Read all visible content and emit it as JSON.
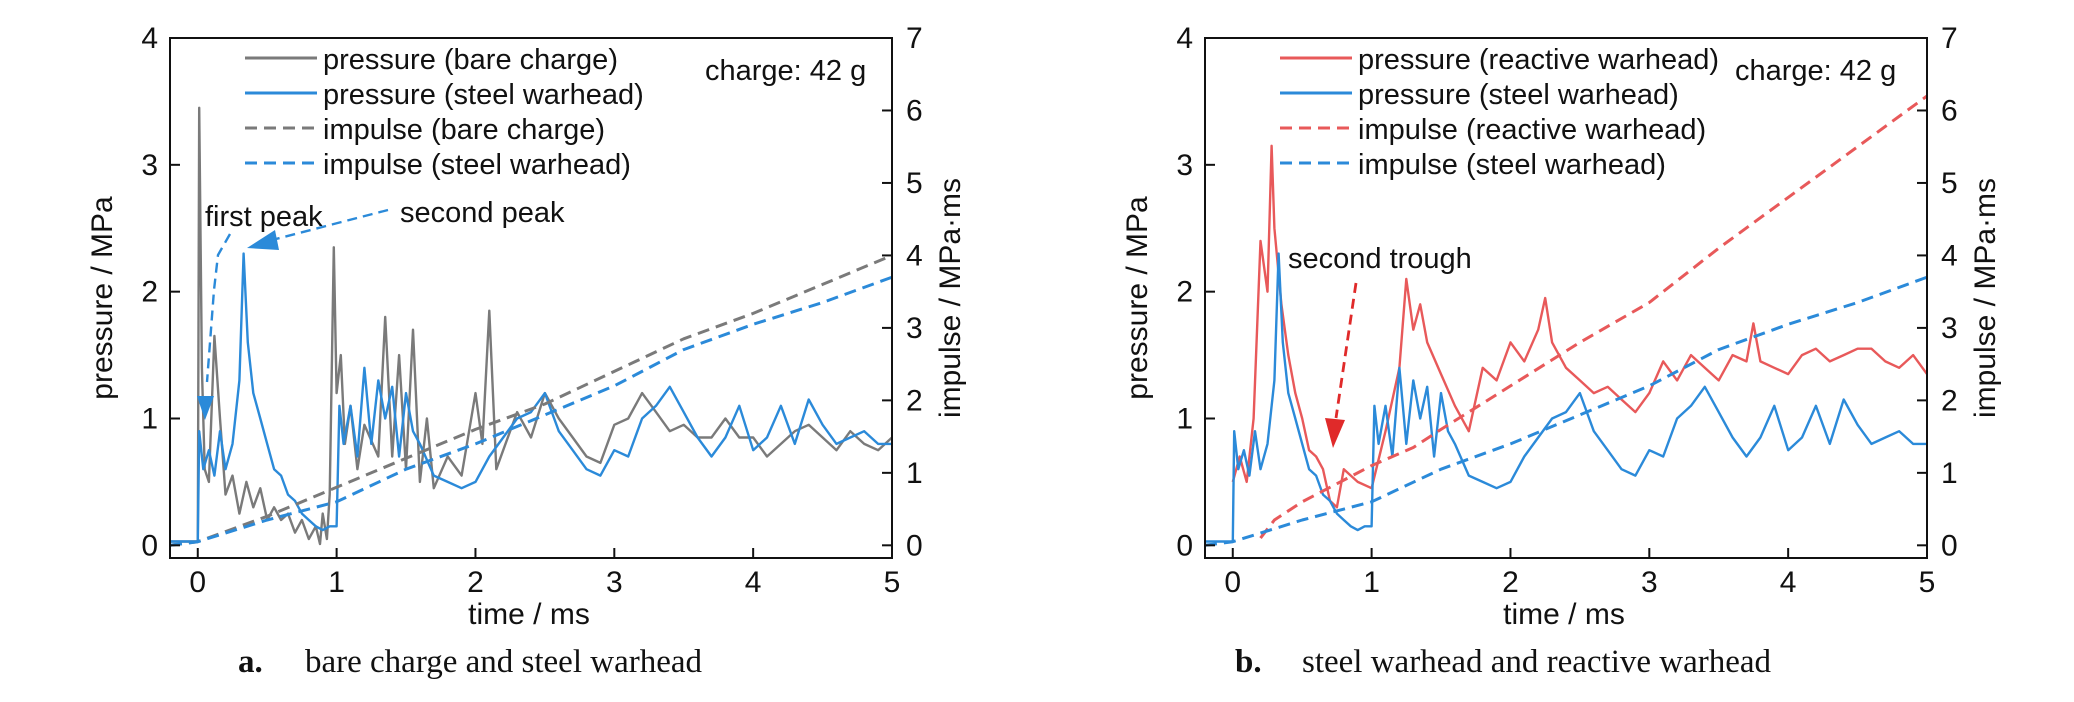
{
  "chart_data": [
    {
      "type": "line",
      "panel_label": "a.",
      "caption": "bare charge and steel warhead",
      "xlabel": "time / ms",
      "ylabel": "pressure / MPa",
      "y2label": "impulse / MPa·ms",
      "xlim": [
        -0.2,
        5
      ],
      "ylim": [
        -0.1,
        4
      ],
      "y2lim": [
        -0.175,
        7
      ],
      "xticks": [
        "0",
        "1",
        "2",
        "3",
        "4",
        "5"
      ],
      "yticks": [
        "0",
        "1",
        "2",
        "3",
        "4"
      ],
      "y2ticks": [
        "0",
        "1",
        "2",
        "3",
        "4",
        "5",
        "6",
        "7"
      ],
      "annotation_charge": "charge: 42 g",
      "annotations": [
        "first peak",
        "second peak"
      ],
      "series": [
        {
          "name": "pressure (bare charge)",
          "axis": "left",
          "style": "solid",
          "color": "#7a7a7a",
          "x": [
            -0.2,
            0,
            0.01,
            0.03,
            0.05,
            0.08,
            0.12,
            0.16,
            0.2,
            0.25,
            0.3,
            0.35,
            0.4,
            0.45,
            0.5,
            0.55,
            0.6,
            0.65,
            0.7,
            0.75,
            0.8,
            0.85,
            0.88,
            0.9,
            0.93,
            0.95,
            0.98,
            1.0,
            1.03,
            1.06,
            1.1,
            1.15,
            1.2,
            1.3,
            1.35,
            1.4,
            1.45,
            1.5,
            1.55,
            1.6,
            1.65,
            1.7,
            1.8,
            1.9,
            2.0,
            2.05,
            2.1,
            2.15,
            2.2,
            2.3,
            2.4,
            2.5,
            2.6,
            2.7,
            2.8,
            2.9,
            3.0,
            3.1,
            3.2,
            3.3,
            3.4,
            3.5,
            3.6,
            3.7,
            3.8,
            3.9,
            4.0,
            4.1,
            4.2,
            4.3,
            4.4,
            4.5,
            4.6,
            4.7,
            4.8,
            4.9,
            5.0
          ],
          "values": [
            0.03,
            0.03,
            3.45,
            1.4,
            0.6,
            0.5,
            1.65,
            1.0,
            0.4,
            0.55,
            0.25,
            0.5,
            0.3,
            0.45,
            0.2,
            0.3,
            0.2,
            0.25,
            0.1,
            0.2,
            0.05,
            0.15,
            0.01,
            0.25,
            0.05,
            0.4,
            2.35,
            1.2,
            1.5,
            0.8,
            1.1,
            0.6,
            0.95,
            0.7,
            1.8,
            0.7,
            1.5,
            0.6,
            1.7,
            0.5,
            1.0,
            0.45,
            0.7,
            0.55,
            1.2,
            0.8,
            1.85,
            0.6,
            0.75,
            1.05,
            0.85,
            1.2,
            1.0,
            0.85,
            0.7,
            0.65,
            0.95,
            1.0,
            1.2,
            1.05,
            0.9,
            0.95,
            0.85,
            0.85,
            1.0,
            0.85,
            0.85,
            0.7,
            0.8,
            0.9,
            0.95,
            0.85,
            0.75,
            0.9,
            0.8,
            0.75,
            0.85
          ]
        },
        {
          "name": "pressure (steel warhead)",
          "axis": "left",
          "style": "solid",
          "color": "#2b8ad9",
          "x": [
            -0.2,
            0,
            0.01,
            0.04,
            0.08,
            0.12,
            0.16,
            0.2,
            0.25,
            0.3,
            0.33,
            0.36,
            0.4,
            0.45,
            0.5,
            0.55,
            0.6,
            0.65,
            0.7,
            0.75,
            0.8,
            0.85,
            0.9,
            0.95,
            1.0,
            1.02,
            1.05,
            1.1,
            1.15,
            1.2,
            1.25,
            1.3,
            1.35,
            1.4,
            1.45,
            1.5,
            1.55,
            1.6,
            1.7,
            1.8,
            1.9,
            2.0,
            2.1,
            2.2,
            2.3,
            2.4,
            2.5,
            2.6,
            2.7,
            2.8,
            2.9,
            3.0,
            3.1,
            3.2,
            3.3,
            3.4,
            3.5,
            3.6,
            3.7,
            3.8,
            3.9,
            4.0,
            4.1,
            4.2,
            4.3,
            4.4,
            4.5,
            4.6,
            4.7,
            4.8,
            4.9,
            5.0
          ],
          "values": [
            0.03,
            0.03,
            0.9,
            0.6,
            0.75,
            0.55,
            0.9,
            0.6,
            0.8,
            1.3,
            2.3,
            1.6,
            1.2,
            1.0,
            0.8,
            0.6,
            0.55,
            0.4,
            0.35,
            0.25,
            0.2,
            0.15,
            0.12,
            0.15,
            0.15,
            1.1,
            0.8,
            1.1,
            0.7,
            1.4,
            0.8,
            1.3,
            1.0,
            1.25,
            0.7,
            1.2,
            0.9,
            0.8,
            0.55,
            0.5,
            0.45,
            0.5,
            0.7,
            0.85,
            1.0,
            1.05,
            1.2,
            0.9,
            0.75,
            0.6,
            0.55,
            0.75,
            0.7,
            1.0,
            1.1,
            1.25,
            1.05,
            0.85,
            0.7,
            0.85,
            1.1,
            0.75,
            0.85,
            1.1,
            0.8,
            1.15,
            0.95,
            0.8,
            0.85,
            0.9,
            0.8,
            0.8
          ]
        },
        {
          "name": "impulse (bare charge)",
          "axis": "right",
          "style": "dashed",
          "color": "#7a7a7a",
          "x": [
            -0.2,
            0,
            0.5,
            1.0,
            1.5,
            2.0,
            2.5,
            3.0,
            3.5,
            4.0,
            4.5,
            5.0
          ],
          "values": [
            0.0,
            0.05,
            0.4,
            0.8,
            1.2,
            1.6,
            1.95,
            2.4,
            2.85,
            3.2,
            3.6,
            4.0
          ]
        },
        {
          "name": "impulse (steel warhead)",
          "axis": "right",
          "style": "dashed",
          "color": "#2b8ad9",
          "x": [
            -0.2,
            0,
            0.5,
            1.0,
            1.5,
            2.0,
            2.5,
            3.0,
            3.5,
            4.0,
            4.5,
            5.0
          ],
          "values": [
            0.0,
            0.05,
            0.35,
            0.6,
            1.05,
            1.4,
            1.8,
            2.2,
            2.7,
            3.05,
            3.35,
            3.7
          ]
        }
      ]
    },
    {
      "type": "line",
      "panel_label": "b.",
      "caption": "steel warhead and reactive warhead",
      "xlabel": "time / ms",
      "ylabel": "pressure / MPa",
      "y2label": "impulse / MPa·ms",
      "xlim": [
        -0.2,
        5
      ],
      "ylim": [
        -0.1,
        4
      ],
      "y2lim": [
        -0.175,
        7
      ],
      "xticks": [
        "0",
        "1",
        "2",
        "3",
        "4",
        "5"
      ],
      "yticks": [
        "0",
        "1",
        "2",
        "3",
        "4"
      ],
      "y2ticks": [
        "0",
        "1",
        "2",
        "3",
        "4",
        "5",
        "6",
        "7"
      ],
      "annotation_charge": "charge: 42 g",
      "annotations": [
        "second trough"
      ],
      "series": [
        {
          "name": "pressure (reactive warhead)",
          "axis": "left",
          "style": "solid",
          "color": "#e8595a",
          "x": [
            0,
            0.05,
            0.1,
            0.15,
            0.2,
            0.25,
            0.28,
            0.3,
            0.35,
            0.4,
            0.45,
            0.5,
            0.55,
            0.6,
            0.65,
            0.7,
            0.75,
            0.8,
            0.9,
            1.0,
            1.1,
            1.2,
            1.25,
            1.3,
            1.35,
            1.4,
            1.5,
            1.6,
            1.7,
            1.8,
            1.9,
            2.0,
            2.1,
            2.2,
            2.25,
            2.3,
            2.4,
            2.5,
            2.6,
            2.7,
            2.8,
            2.9,
            3.0,
            3.1,
            3.2,
            3.3,
            3.4,
            3.5,
            3.6,
            3.7,
            3.75,
            3.8,
            3.9,
            4.0,
            4.1,
            4.2,
            4.3,
            4.4,
            4.5,
            4.6,
            4.7,
            4.8,
            4.9,
            5.0
          ],
          "values": [
            0.5,
            0.7,
            0.5,
            1.0,
            2.4,
            2.0,
            3.15,
            2.5,
            1.9,
            1.5,
            1.2,
            1.0,
            0.75,
            0.7,
            0.6,
            0.35,
            0.3,
            0.6,
            0.5,
            0.45,
            0.9,
            1.4,
            2.1,
            1.7,
            1.9,
            1.6,
            1.35,
            1.1,
            0.9,
            1.4,
            1.3,
            1.6,
            1.45,
            1.7,
            1.95,
            1.6,
            1.4,
            1.3,
            1.2,
            1.25,
            1.15,
            1.05,
            1.2,
            1.45,
            1.3,
            1.5,
            1.4,
            1.3,
            1.5,
            1.45,
            1.75,
            1.45,
            1.4,
            1.35,
            1.5,
            1.55,
            1.45,
            1.5,
            1.55,
            1.55,
            1.45,
            1.4,
            1.5,
            1.35
          ]
        },
        {
          "name": "pressure (steel warhead)",
          "axis": "left",
          "style": "solid",
          "color": "#2b8ad9",
          "x": [
            -0.2,
            0,
            0.01,
            0.04,
            0.08,
            0.12,
            0.16,
            0.2,
            0.25,
            0.3,
            0.33,
            0.36,
            0.4,
            0.45,
            0.5,
            0.55,
            0.6,
            0.65,
            0.7,
            0.75,
            0.8,
            0.85,
            0.9,
            0.95,
            1.0,
            1.02,
            1.05,
            1.1,
            1.15,
            1.2,
            1.25,
            1.3,
            1.35,
            1.4,
            1.45,
            1.5,
            1.55,
            1.6,
            1.7,
            1.8,
            1.9,
            2.0,
            2.1,
            2.2,
            2.3,
            2.4,
            2.5,
            2.6,
            2.7,
            2.8,
            2.9,
            3.0,
            3.1,
            3.2,
            3.3,
            3.4,
            3.5,
            3.6,
            3.7,
            3.8,
            3.9,
            4.0,
            4.1,
            4.2,
            4.3,
            4.4,
            4.5,
            4.6,
            4.7,
            4.8,
            4.9,
            5.0
          ],
          "values": [
            0.03,
            0.03,
            0.9,
            0.6,
            0.75,
            0.55,
            0.9,
            0.6,
            0.8,
            1.3,
            2.3,
            1.6,
            1.2,
            1.0,
            0.8,
            0.6,
            0.55,
            0.4,
            0.35,
            0.25,
            0.2,
            0.15,
            0.12,
            0.15,
            0.15,
            1.1,
            0.8,
            1.1,
            0.7,
            1.4,
            0.8,
            1.3,
            1.0,
            1.25,
            0.7,
            1.2,
            0.9,
            0.8,
            0.55,
            0.5,
            0.45,
            0.5,
            0.7,
            0.85,
            1.0,
            1.05,
            1.2,
            0.9,
            0.75,
            0.6,
            0.55,
            0.75,
            0.7,
            1.0,
            1.1,
            1.25,
            1.05,
            0.85,
            0.7,
            0.85,
            1.1,
            0.75,
            0.85,
            1.1,
            0.8,
            1.15,
            0.95,
            0.8,
            0.85,
            0.9,
            0.8,
            0.8
          ]
        },
        {
          "name": "impulse (reactive warhead)",
          "axis": "right",
          "style": "dashed",
          "color": "#e8595a",
          "x": [
            0.2,
            0.3,
            0.5,
            0.7,
            1.0,
            1.3,
            1.5,
            2.0,
            2.5,
            3.0,
            3.5,
            4.0,
            4.5,
            5.0
          ],
          "values": [
            0.1,
            0.35,
            0.6,
            0.8,
            1.1,
            1.35,
            1.6,
            2.2,
            2.8,
            3.35,
            4.1,
            4.8,
            5.5,
            6.2
          ]
        },
        {
          "name": "impulse (steel warhead)",
          "axis": "right",
          "style": "dashed",
          "color": "#2b8ad9",
          "x": [
            -0.2,
            0,
            0.5,
            1.0,
            1.5,
            2.0,
            2.5,
            3.0,
            3.5,
            4.0,
            4.5,
            5.0
          ],
          "values": [
            0.0,
            0.05,
            0.35,
            0.6,
            1.05,
            1.4,
            1.8,
            2.2,
            2.7,
            3.05,
            3.35,
            3.7
          ]
        }
      ]
    }
  ]
}
